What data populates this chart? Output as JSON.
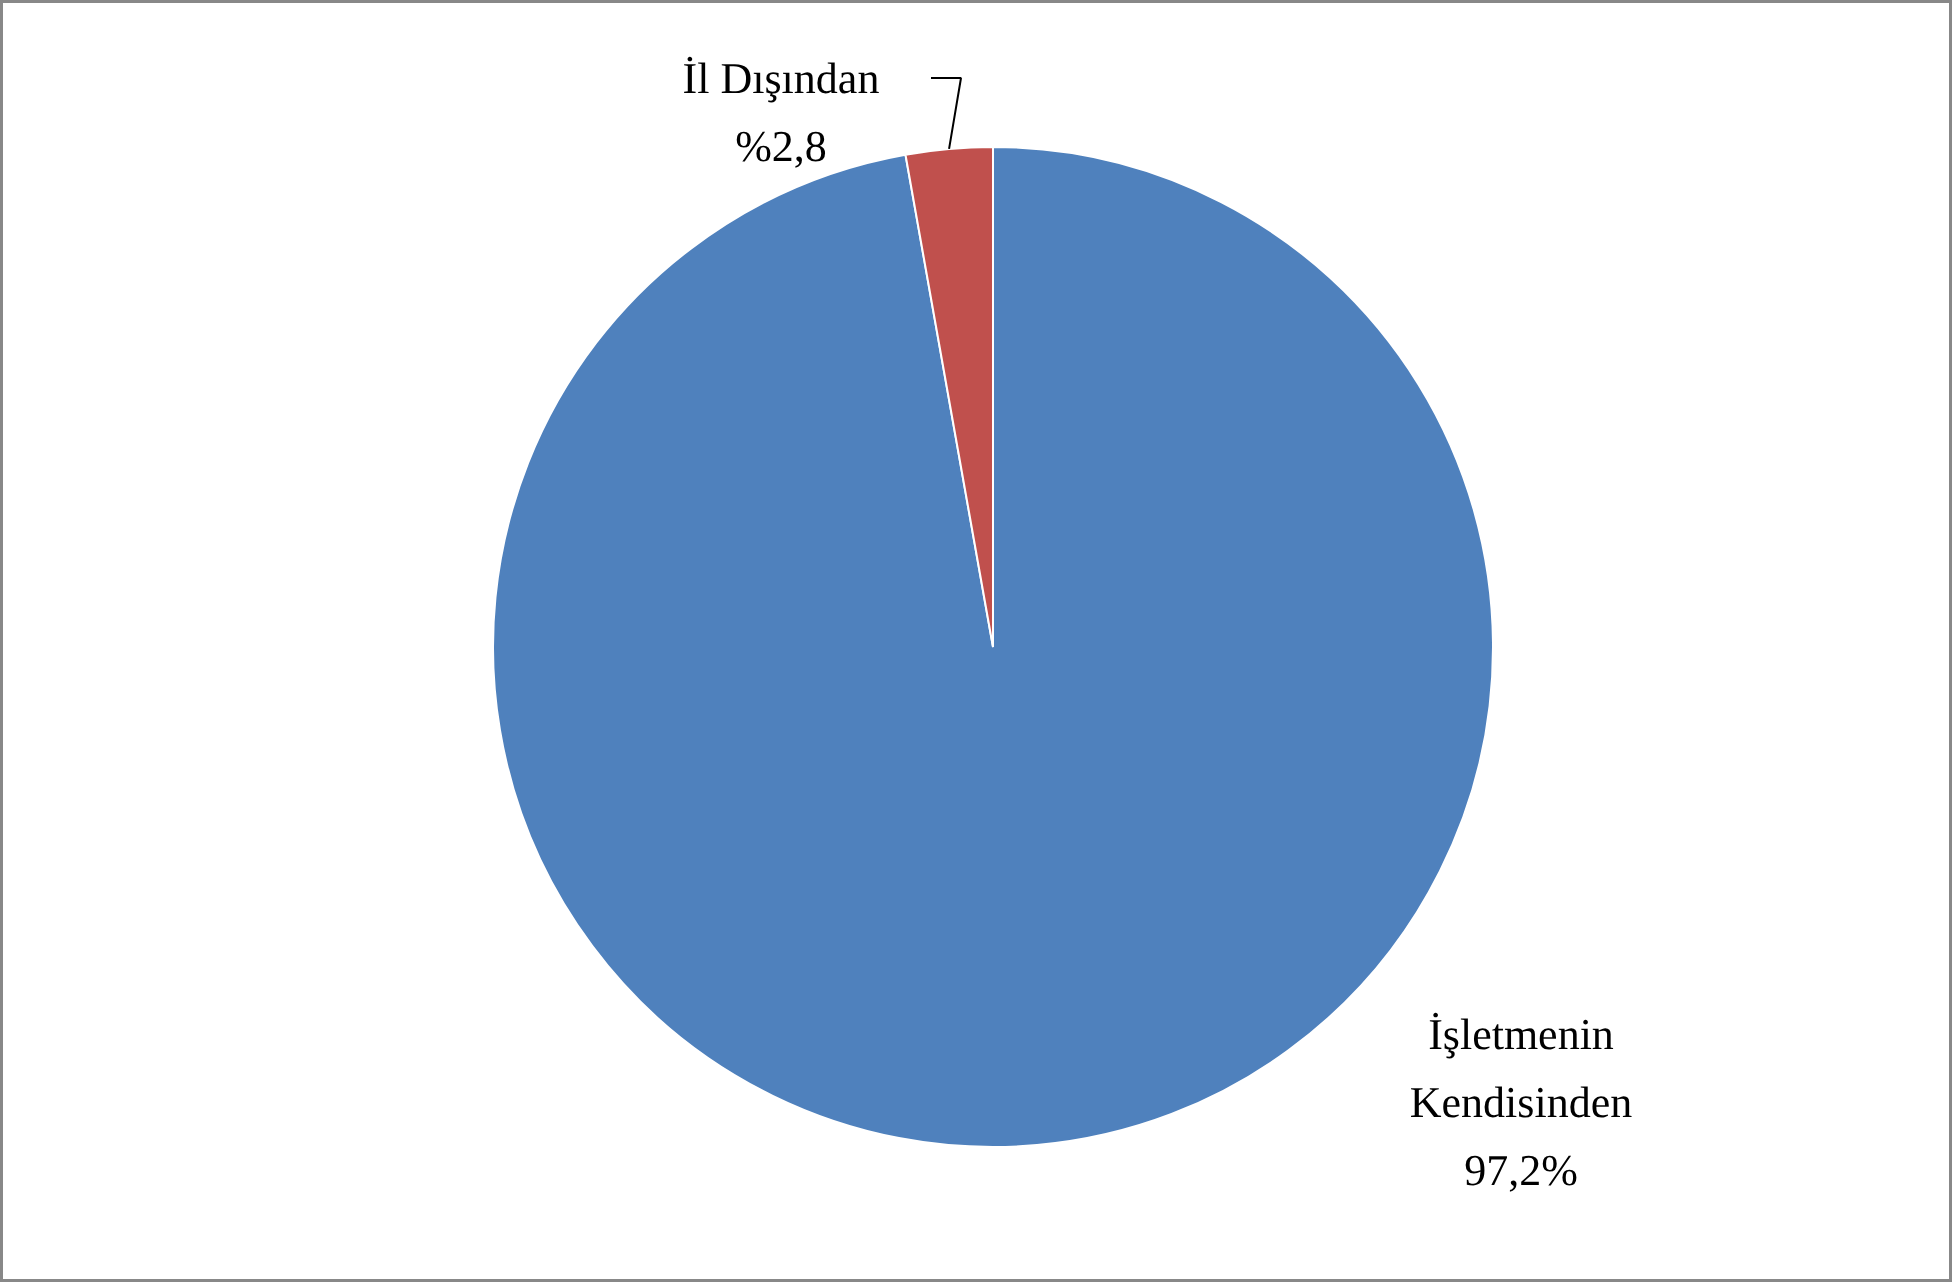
{
  "chart_data": {
    "type": "pie",
    "categories": [
      "İşletmenin Kendisinden",
      "İl Dışından"
    ],
    "values": [
      97.2,
      2.8
    ],
    "colors": [
      "#4f81bd",
      "#c0504d"
    ],
    "value_labels": [
      "97,2%",
      "%2,8"
    ]
  }
}
